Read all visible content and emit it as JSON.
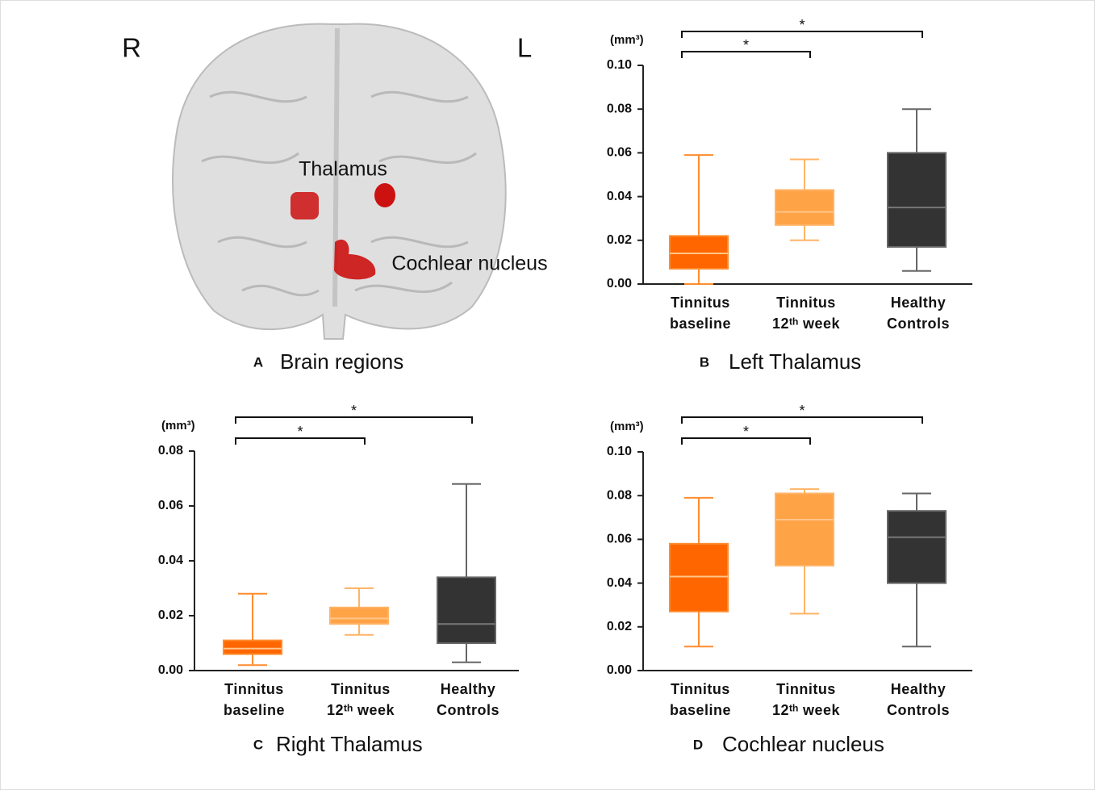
{
  "brain_panel": {
    "letter": "A",
    "title": "Brain regions",
    "side_labels": [
      "R",
      "L"
    ],
    "region_labels": [
      "Thalamus",
      "Cochlear nucleus"
    ]
  },
  "chart_data": [
    {
      "type": "box",
      "panel": "B",
      "title": "Left Thalamus",
      "y_unit": "(mm³)",
      "categories": [
        [
          "Tinnitus",
          "baseline"
        ],
        [
          "Tinnitus",
          "12ᵗʰ week"
        ],
        [
          "Healthy",
          "Controls"
        ]
      ],
      "colors": [
        "#ff6600",
        "#ffa347",
        "#333333"
      ],
      "whisker_colors": [
        "#ff8c2e",
        "#ffb466",
        "#666666"
      ],
      "boxes": [
        {
          "min": 0,
          "q1": 0.007,
          "median": 0.014,
          "q3": 0.022,
          "max": 0.059
        },
        {
          "min": 0.02,
          "q1": 0.027,
          "median": 0.033,
          "q3": 0.043,
          "max": 0.057
        },
        {
          "min": 0.006,
          "q1": 0.017,
          "median": 0.035,
          "q3": 0.06,
          "max": 0.08
        }
      ],
      "ylim": [
        0,
        0.1
      ],
      "yticks": [
        {
          "value": 0,
          "label": "0.00"
        },
        {
          "value": 0.02,
          "label": "0.02"
        },
        {
          "value": 0.04,
          "label": "0.04"
        },
        {
          "value": 0.06,
          "label": "0.06"
        },
        {
          "value": 0.08,
          "label": "0.08"
        },
        {
          "value": 0.1,
          "label": "0.10"
        }
      ],
      "significance": [
        {
          "from": 0,
          "to": 1,
          "label": "*"
        },
        {
          "from": 0,
          "to": 2,
          "label": "*"
        }
      ]
    },
    {
      "type": "box",
      "panel": "C",
      "title": "Right Thalamus",
      "y_unit": "(mm³)",
      "categories": [
        [
          "Tinnitus",
          "baseline"
        ],
        [
          "Tinnitus",
          "12ᵗʰ week"
        ],
        [
          "Healthy",
          "Controls"
        ]
      ],
      "colors": [
        "#ff6600",
        "#ffa347",
        "#333333"
      ],
      "whisker_colors": [
        "#ff8c2e",
        "#ffb466",
        "#666666"
      ],
      "boxes": [
        {
          "min": 0.002,
          "q1": 0.006,
          "median": 0.008,
          "q3": 0.011,
          "max": 0.028
        },
        {
          "min": 0.013,
          "q1": 0.017,
          "median": 0.019,
          "q3": 0.023,
          "max": 0.03
        },
        {
          "min": 0.003,
          "q1": 0.01,
          "median": 0.017,
          "q3": 0.034,
          "max": 0.068
        }
      ],
      "ylim": [
        0,
        0.08
      ],
      "yticks": [
        {
          "value": 0,
          "label": "0.00"
        },
        {
          "value": 0.02,
          "label": "0.02"
        },
        {
          "value": 0.04,
          "label": "0.04"
        },
        {
          "value": 0.06,
          "label": "0.06"
        },
        {
          "value": 0.08,
          "label": "0.08"
        }
      ],
      "significance": [
        {
          "from": 0,
          "to": 1,
          "label": "*"
        },
        {
          "from": 0,
          "to": 2,
          "label": "*"
        }
      ]
    },
    {
      "type": "box",
      "panel": "D",
      "title": "Cochlear nucleus",
      "y_unit": "(mm³)",
      "categories": [
        [
          "Tinnitus",
          "baseline"
        ],
        [
          "Tinnitus",
          "12ᵗʰ week"
        ],
        [
          "Healthy",
          "Controls"
        ]
      ],
      "colors": [
        "#ff6600",
        "#ffa347",
        "#333333"
      ],
      "whisker_colors": [
        "#ff8c2e",
        "#ffb466",
        "#666666"
      ],
      "boxes": [
        {
          "min": 0.011,
          "q1": 0.027,
          "median": 0.043,
          "q3": 0.058,
          "max": 0.079
        },
        {
          "min": 0.026,
          "q1": 0.048,
          "median": 0.069,
          "q3": 0.081,
          "max": 0.083
        },
        {
          "min": 0.011,
          "q1": 0.04,
          "median": 0.061,
          "q3": 0.073,
          "max": 0.081
        }
      ],
      "ylim": [
        0,
        0.1
      ],
      "yticks": [
        {
          "value": 0,
          "label": "0.00"
        },
        {
          "value": 0.02,
          "label": "0.02"
        },
        {
          "value": 0.04,
          "label": "0.04"
        },
        {
          "value": 0.06,
          "label": "0.06"
        },
        {
          "value": 0.08,
          "label": "0.08"
        },
        {
          "value": 0.1,
          "label": "0.10"
        }
      ],
      "significance": [
        {
          "from": 0,
          "to": 1,
          "label": "*"
        },
        {
          "from": 0,
          "to": 2,
          "label": "*"
        }
      ]
    }
  ]
}
